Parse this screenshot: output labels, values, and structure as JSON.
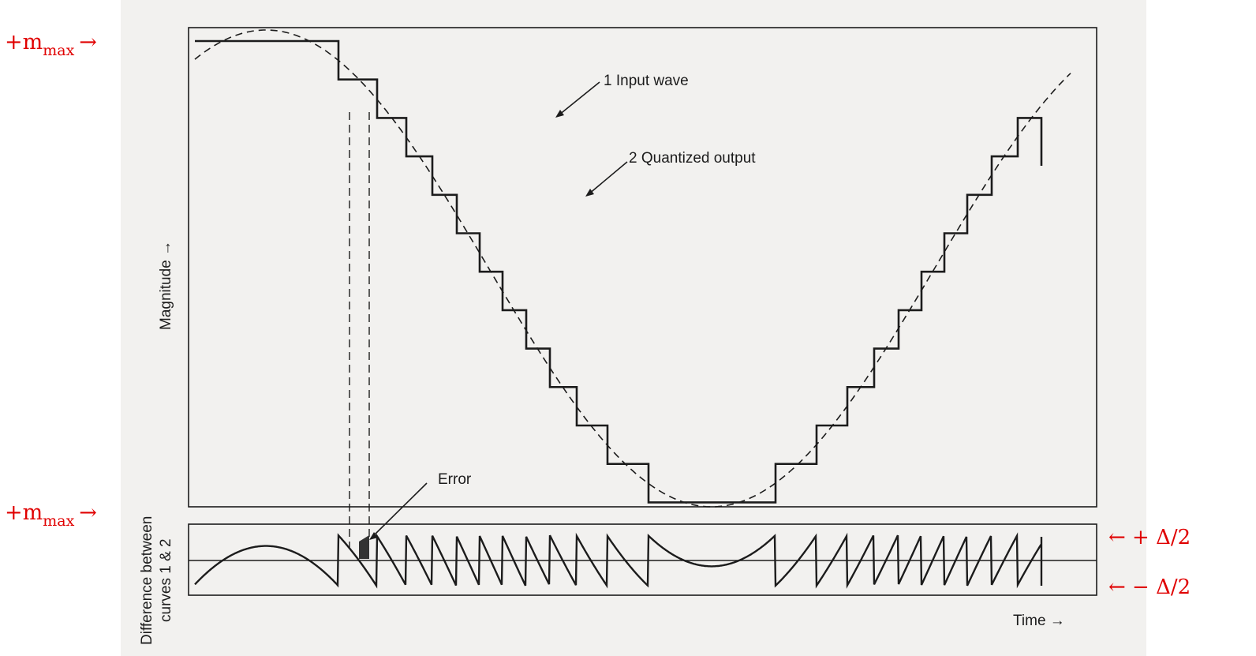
{
  "figure": {
    "labels": {
      "input_wave": "1 Input wave",
      "quantized_output": "2 Quantized output",
      "error": "Error",
      "magnitude_axis": "Magnitude →",
      "difference_axis_line1": "Difference between",
      "difference_axis_line2": "curves 1 & 2",
      "time_axis": "Time →"
    },
    "annotations": {
      "m_max_top": {
        "sign": "+m",
        "subscript": "max",
        "arrow": "→"
      },
      "m_max_bottom": {
        "sign": "+m",
        "subscript": "max",
        "arrow": "→"
      },
      "plus_half_step": "← + Δ/2",
      "minus_half_step": "← − Δ/2"
    },
    "colors": {
      "scan_background": "#f2f1ef",
      "line": "#1c1c1c",
      "annotation_red": "#e00000"
    }
  }
}
